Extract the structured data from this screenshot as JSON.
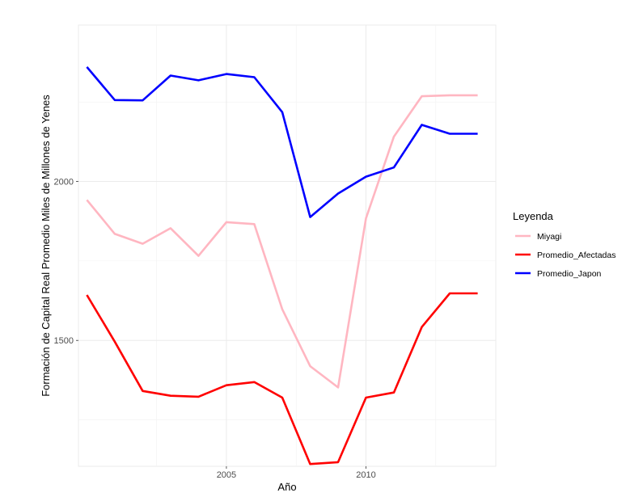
{
  "chart_data": {
    "type": "line",
    "title": "",
    "xlabel": "Año",
    "ylabel": "Formación de Capital Real Promedio Miles de Millones de Yenes",
    "xlim": [
      1999.7,
      2014.65
    ],
    "ylim": [
      1104,
      2492
    ],
    "x_ticks": [
      2005,
      2010
    ],
    "y_ticks": [
      1500,
      2000
    ],
    "grid": true,
    "legend": {
      "title": "Leyenda",
      "position": "right"
    },
    "x": [
      2000,
      2001,
      2002,
      2003,
      2004,
      2005,
      2006,
      2007,
      2008,
      2009,
      2010,
      2011,
      2012,
      2013,
      2014
    ],
    "series": [
      {
        "name": "Miyagi",
        "color": "#ffb6c1",
        "values": [
          1942,
          1835,
          1804,
          1853,
          1766,
          1872,
          1866,
          1598,
          1419,
          1352,
          1884,
          2141,
          2268,
          2271,
          2271
        ]
      },
      {
        "name": "Promedio_Afectadas",
        "color": "#ff0000",
        "values": [
          1643,
          1496,
          1341,
          1326,
          1323,
          1359,
          1369,
          1320,
          1111,
          1117,
          1320,
          1336,
          1542,
          1648,
          1648
        ]
      },
      {
        "name": "Promedio_Japon",
        "color": "#0000ff",
        "values": [
          2360,
          2256,
          2255,
          2333,
          2318,
          2338,
          2328,
          2218,
          1888,
          1962,
          2015,
          2044,
          2178,
          2150,
          2150
        ]
      }
    ]
  }
}
